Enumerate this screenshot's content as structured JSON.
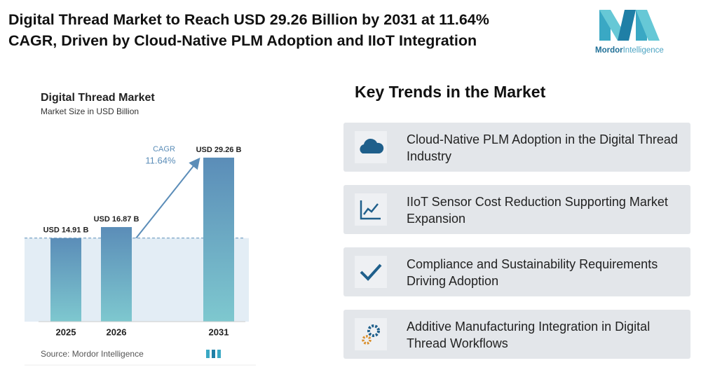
{
  "header": {
    "title_lines": [
      "Digital Thread Market to Reach USD 29.26 Billion by 2031 at 11.64%",
      "CAGR, Driven by Cloud-Native PLM Adoption and IIoT Integration"
    ],
    "logo": {
      "brand": "Mordor",
      "suffix": "Intelligence"
    }
  },
  "chart_data": {
    "type": "bar",
    "title": "Digital Thread Market",
    "subtitle": "Market Size in USD Billion",
    "categories": [
      "2025",
      "2026",
      "2031"
    ],
    "values": [
      14.91,
      16.87,
      29.26
    ],
    "value_labels": [
      "USD 14.91 B",
      "USD 16.87 B",
      "USD 29.26 B"
    ],
    "annotation": {
      "label": "CAGR",
      "value": "11.64%"
    },
    "source": "Source: Mordor Intelligence",
    "color": "#5b8db8"
  },
  "trends": {
    "title": "Key Trends in the Market",
    "items": [
      "Cloud-Native PLM Adoption in the Digital Thread Industry",
      "IIoT Sensor Cost Reduction Supporting Market Expansion",
      "Compliance and Sustainability Requirements Driving Adoption",
      "Additive Manufacturing Integration in Digital Thread Workflows"
    ]
  }
}
